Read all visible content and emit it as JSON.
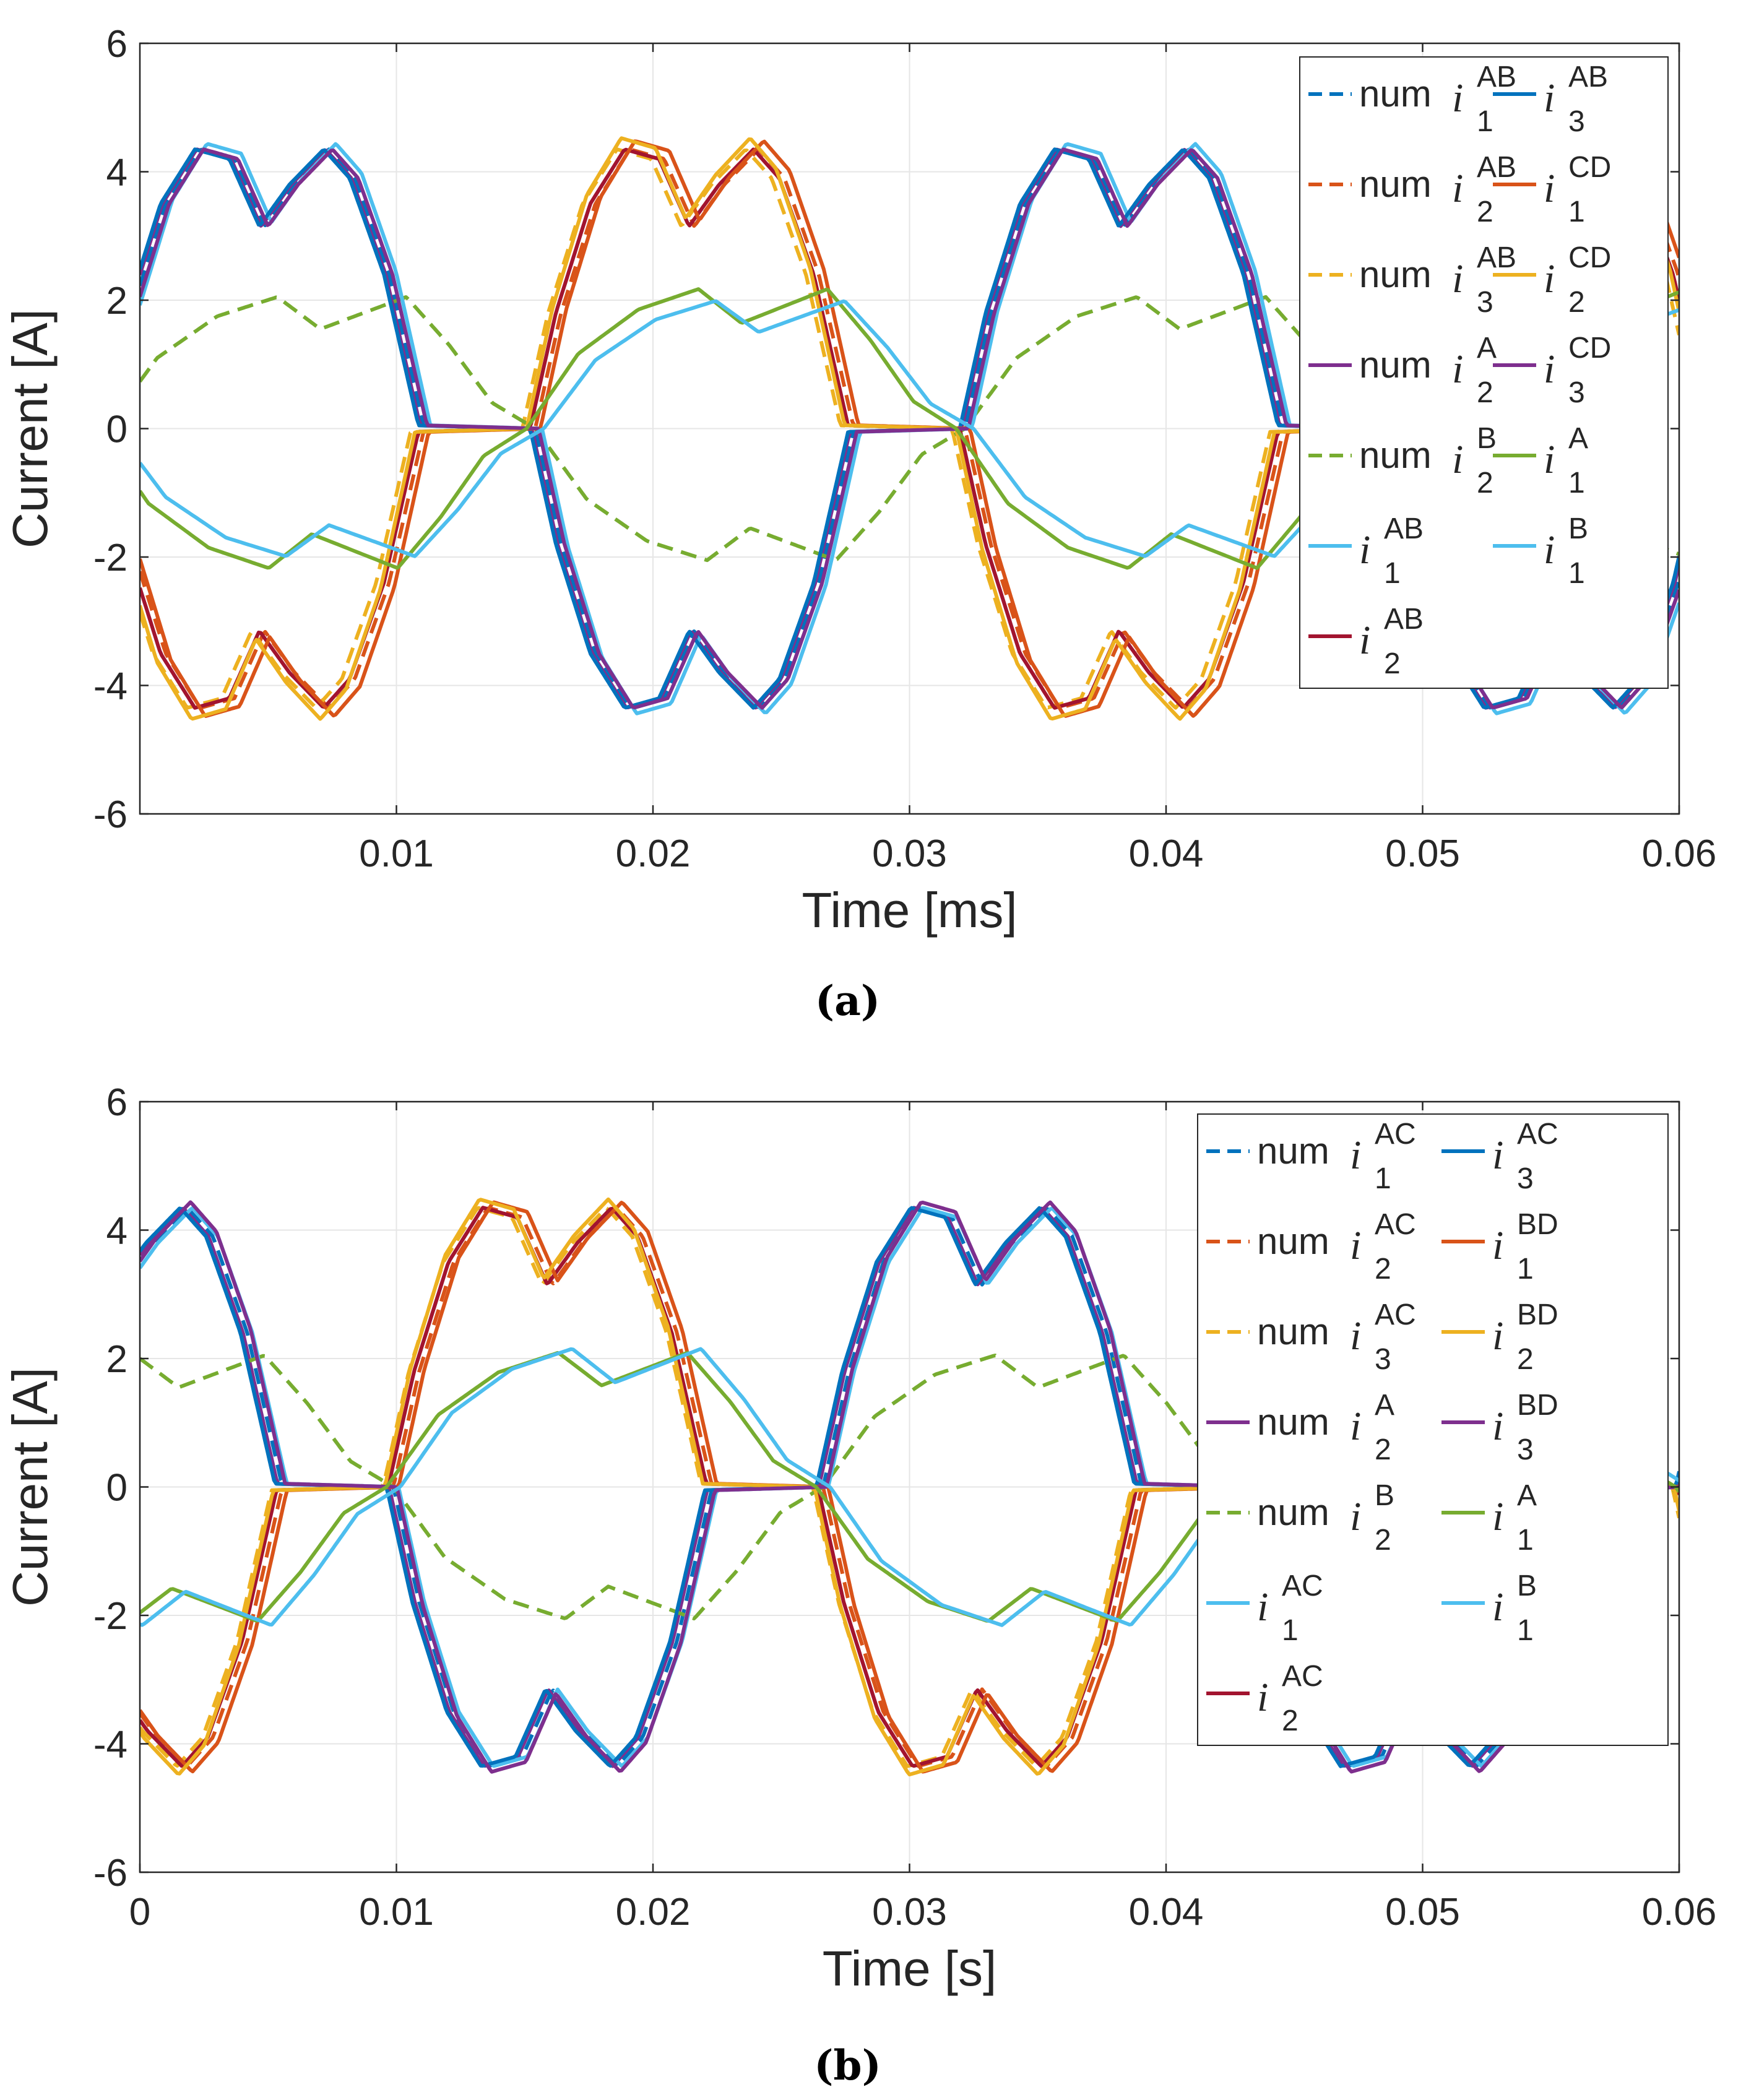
{
  "chart_data": [
    {
      "type": "line",
      "panel": "a",
      "caption": "(a)",
      "xlabel": "Time  [ms]",
      "ylabel": "Current [A]",
      "xlim": [
        0,
        0.06
      ],
      "ylim": [
        -6,
        6
      ],
      "xticks": [
        0.01,
        0.02,
        0.03,
        0.04,
        0.05,
        0.06
      ],
      "yticks": [
        -6,
        -4,
        -2,
        0,
        2,
        4,
        6
      ],
      "grid": true,
      "legend_position": "top-right",
      "legend_columns": 2,
      "period": 0.0335,
      "phase_c": 0.04,
      "series": [
        {
          "key": "a1",
          "prefix": "num ",
          "sup": "AB",
          "sub": "1",
          "color": "#0072BD",
          "dash": true,
          "wave": "six",
          "phase": 0.0,
          "offset": 0.0,
          "amp": 1.0
        },
        {
          "key": "a2",
          "prefix": "num ",
          "sup": "AB",
          "sub": "2",
          "color": "#D95319",
          "dash": true,
          "wave": "six",
          "phase": 0.5,
          "offset": 0.0,
          "amp": 1.0
        },
        {
          "key": "a3",
          "prefix": "num ",
          "sup": "AB",
          "sub": "3",
          "color": "#EDB120",
          "dash": true,
          "wave": "six",
          "phase": 0.5,
          "offset": 0.015,
          "amp": 1.0
        },
        {
          "key": "a4",
          "prefix": "num ",
          "sup": "A",
          "sub": "2",
          "color": "#7E2F8E",
          "dash": false,
          "wave": "six",
          "phase": 0.0,
          "offset": 0.004,
          "amp": 1.0
        },
        {
          "key": "a5",
          "prefix": "num ",
          "sup": "B",
          "sub": "2",
          "color": "#77AC30",
          "dash": true,
          "wave": "half",
          "phase": 0.0,
          "offset": 0.0,
          "amp": 1.0
        },
        {
          "key": "a6",
          "prefix": "",
          "sup": "AB",
          "sub": "1",
          "color": "#4DBEEE",
          "dash": false,
          "wave": "six",
          "phase": 0.0,
          "offset": -0.008,
          "amp": 1.02
        },
        {
          "key": "a7",
          "prefix": "",
          "sup": "AB",
          "sub": "2",
          "color": "#A2142F",
          "dash": false,
          "wave": "six",
          "phase": 0.5,
          "offset": 0.006,
          "amp": 1.0
        },
        {
          "key": "a8",
          "prefix": "",
          "sup": "AB",
          "sub": "3",
          "color": "#0072BD",
          "dash": false,
          "wave": "six",
          "phase": 0.0,
          "offset": 0.006,
          "amp": 1.0
        },
        {
          "key": "a9",
          "prefix": "",
          "sup": "CD",
          "sub": "1",
          "color": "#D95319",
          "dash": false,
          "wave": "six",
          "phase": 0.5,
          "offset": -0.006,
          "amp": 1.03
        },
        {
          "key": "a10",
          "prefix": "",
          "sup": "CD",
          "sub": "2",
          "color": "#EDB120",
          "dash": false,
          "wave": "six",
          "phase": 0.5,
          "offset": 0.01,
          "amp": 1.04
        },
        {
          "key": "a11",
          "prefix": "",
          "sup": "CD",
          "sub": "3",
          "color": "#7E2F8E",
          "dash": false,
          "wave": "six",
          "phase": 0.0,
          "offset": -0.004,
          "amp": 1.0
        },
        {
          "key": "a12",
          "prefix": "",
          "sup": "A",
          "sub": "1",
          "color": "#77AC30",
          "dash": false,
          "wave": "half",
          "phase": 0.5,
          "offset": 0.01,
          "amp": 1.06
        },
        {
          "key": "a13",
          "prefix": "",
          "sup": "B",
          "sub": "1",
          "color": "#4DBEEE",
          "dash": false,
          "wave": "half",
          "phase": 0.5,
          "offset": -0.01,
          "amp": 0.97
        }
      ]
    },
    {
      "type": "line",
      "panel": "b",
      "caption": "(b)",
      "xlabel": "Time  [s]",
      "ylabel": "Current [A]",
      "xlim": [
        0,
        0.06
      ],
      "ylim": [
        -6,
        6
      ],
      "xticks": [
        0,
        0.01,
        0.02,
        0.03,
        0.04,
        0.05,
        0.06
      ],
      "yticks": [
        -6,
        -4,
        -2,
        0,
        2,
        4,
        6
      ],
      "grid": true,
      "legend_position": "top-right",
      "legend_columns": 2,
      "period": 0.0335,
      "phase_c": 0.205,
      "series": [
        {
          "key": "b1",
          "prefix": "num ",
          "sup": "AC",
          "sub": "1",
          "color": "#0072BD",
          "dash": true,
          "wave": "six",
          "phase": 0.0,
          "offset": 0.0,
          "amp": 1.0
        },
        {
          "key": "b2",
          "prefix": "num ",
          "sup": "AC",
          "sub": "2",
          "color": "#D95319",
          "dash": true,
          "wave": "six",
          "phase": 0.5,
          "offset": 0.0,
          "amp": 1.0
        },
        {
          "key": "b3",
          "prefix": "num ",
          "sup": "AC",
          "sub": "3",
          "color": "#EDB120",
          "dash": true,
          "wave": "six",
          "phase": 0.5,
          "offset": 0.012,
          "amp": 1.0
        },
        {
          "key": "b4",
          "prefix": "num ",
          "sup": "A",
          "sub": "2",
          "color": "#7E2F8E",
          "dash": false,
          "wave": "six",
          "phase": 0.0,
          "offset": 0.005,
          "amp": 1.0
        },
        {
          "key": "b5",
          "prefix": "num ",
          "sup": "B",
          "sub": "2",
          "color": "#77AC30",
          "dash": true,
          "wave": "half",
          "phase": 0.0,
          "offset": 0.0,
          "amp": 1.0
        },
        {
          "key": "b6",
          "prefix": "",
          "sup": "AC",
          "sub": "1",
          "color": "#4DBEEE",
          "dash": false,
          "wave": "six",
          "phase": 0.0,
          "offset": -0.006,
          "amp": 1.0
        },
        {
          "key": "b7",
          "prefix": "",
          "sup": "AC",
          "sub": "2",
          "color": "#A2142F",
          "dash": false,
          "wave": "six",
          "phase": 0.5,
          "offset": 0.006,
          "amp": 1.0
        },
        {
          "key": "b8",
          "prefix": "",
          "sup": "AC",
          "sub": "3",
          "color": "#0072BD",
          "dash": false,
          "wave": "six",
          "phase": 0.0,
          "offset": 0.008,
          "amp": 1.0
        },
        {
          "key": "b9",
          "prefix": "",
          "sup": "BD",
          "sub": "1",
          "color": "#D95319",
          "dash": false,
          "wave": "six",
          "phase": 0.5,
          "offset": -0.006,
          "amp": 1.02
        },
        {
          "key": "b10",
          "prefix": "",
          "sup": "BD",
          "sub": "2",
          "color": "#EDB120",
          "dash": false,
          "wave": "six",
          "phase": 0.5,
          "offset": 0.01,
          "amp": 1.03
        },
        {
          "key": "b11",
          "prefix": "",
          "sup": "BD",
          "sub": "3",
          "color": "#7E2F8E",
          "dash": false,
          "wave": "six",
          "phase": 0.0,
          "offset": -0.004,
          "amp": 1.02
        },
        {
          "key": "b12",
          "prefix": "",
          "sup": "A",
          "sub": "1",
          "color": "#77AC30",
          "dash": false,
          "wave": "half",
          "phase": 0.5,
          "offset": 0.008,
          "amp": 1.02
        },
        {
          "key": "b13",
          "prefix": "",
          "sup": "B",
          "sub": "1",
          "color": "#4DBEEE",
          "dash": false,
          "wave": "half",
          "phase": 0.5,
          "offset": -0.008,
          "amp": 1.05
        }
      ]
    }
  ]
}
